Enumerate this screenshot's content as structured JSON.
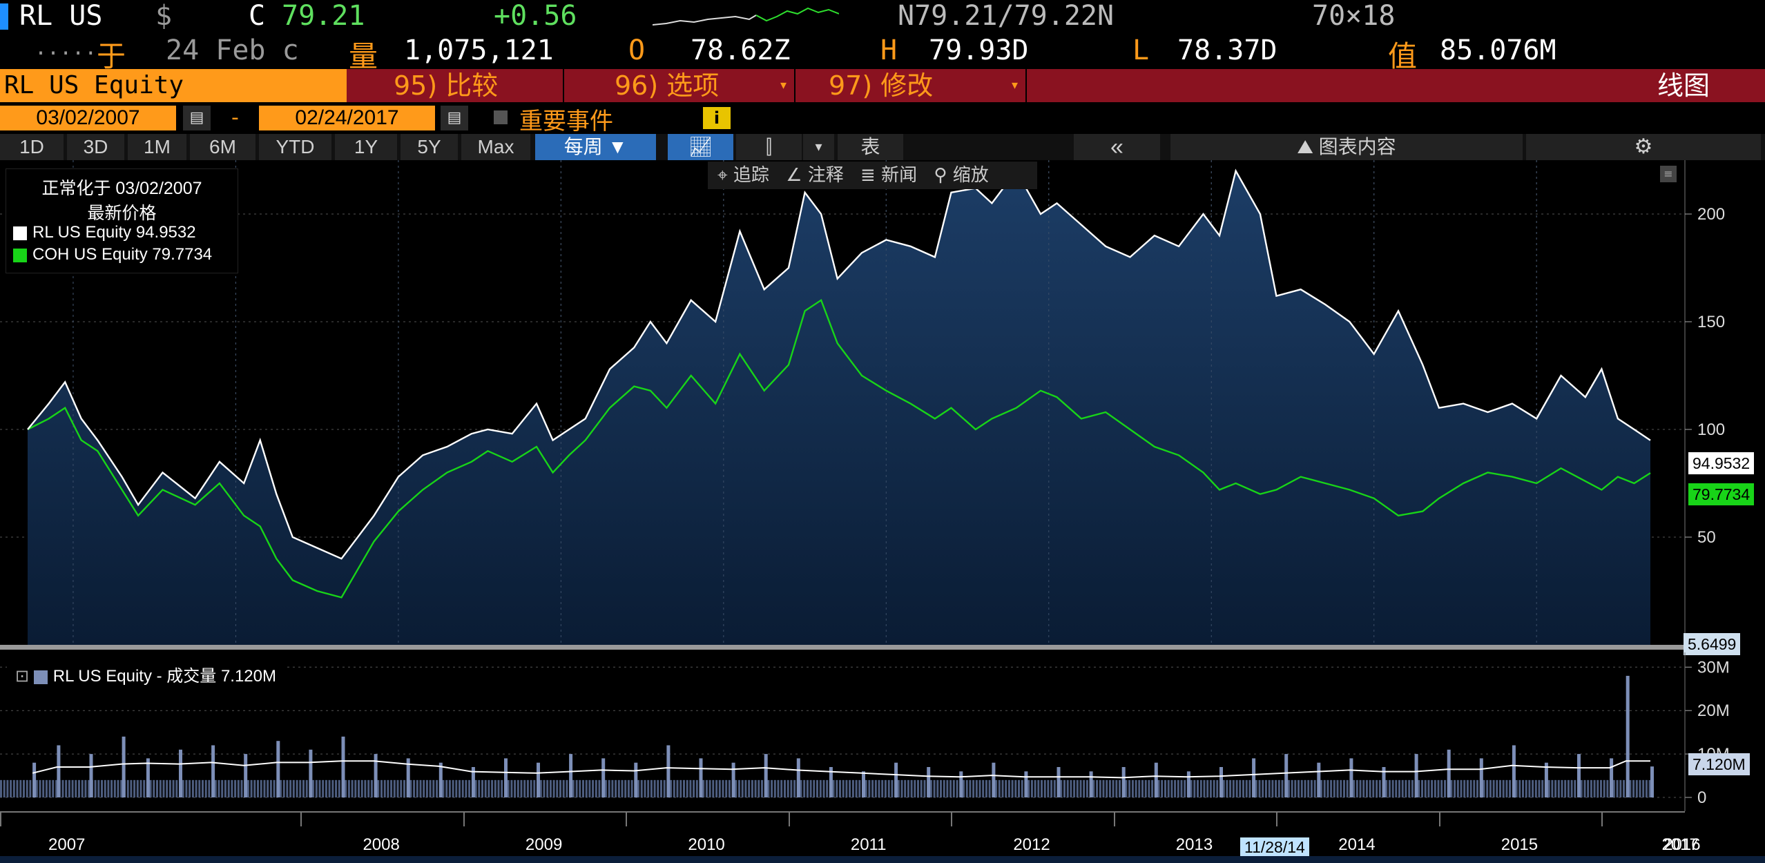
{
  "quote": {
    "ticker": "RL US",
    "currency_sym": "$",
    "close_flag": "C",
    "last": "79.21",
    "change": "+0.56",
    "bid_ask": "N79.21/79.22N",
    "size": "70×18",
    "date_prefix": "于",
    "date": "24 Feb c",
    "vol_label": "量",
    "volume": "1,075,121",
    "open_label": "O",
    "open": "78.62Z",
    "high_label": "H",
    "high": "79.93D",
    "low_label": "L",
    "low": "78.37D",
    "value_label": "值",
    "value": "85.076M",
    "dots": "....."
  },
  "toolbar": {
    "security": "RL US Equity",
    "compare": "95) 比较",
    "options": "96) 选项",
    "modify": "97) 修改",
    "chart_type": "线图",
    "start_date": "03/02/2007",
    "dash": "-",
    "end_date": "02/24/2017",
    "events": "重要事件",
    "info": "i"
  },
  "ranges": [
    "1D",
    "3D",
    "1M",
    "6M",
    "YTD",
    "1Y",
    "5Y",
    "Max"
  ],
  "period": "每周 ▼",
  "table_label": "表",
  "back_label": "«",
  "chart_content": "图表内容",
  "tools": [
    "追踪",
    "注释",
    "新闻",
    "缩放"
  ],
  "legend": {
    "title1": "正常化于 03/02/2007",
    "title2": "最新价格",
    "rl": "RL US Equity   94.9532",
    "coh": "COH US Equity  79.7734"
  },
  "vol_legend": "RL US Equity - 成交量 7.120M",
  "tags": {
    "rl_last": "94.9532",
    "coh_last": "79.7734",
    "low_mark": "5.6499",
    "vol_last": "7.120M",
    "cursor_date": "11/28/14"
  },
  "colors": {
    "rl": "#ffffff",
    "coh": "#18d418",
    "area": "#0e2a48",
    "vol": "#7d8fb8",
    "accent": "#ff9a1a",
    "bar": "#8a1220"
  },
  "chart_data": [
    {
      "type": "line",
      "title": "",
      "xlabel": "",
      "ylabel": "",
      "x_ticks": [
        "2007",
        "2008",
        "2009",
        "2010",
        "2011",
        "2012",
        "2013",
        "2014",
        "2015",
        "2016",
        "2017"
      ],
      "y_ticks": [
        "50",
        "100",
        "150",
        "200"
      ],
      "ylim": [
        0,
        225
      ],
      "legend": "top-left",
      "grid": true,
      "series": [
        {
          "name": "RL US Equity",
          "points": [
            [
              2007.17,
              100
            ],
            [
              2007.3,
              112
            ],
            [
              2007.4,
              122
            ],
            [
              2007.5,
              105
            ],
            [
              2007.6,
              95
            ],
            [
              2007.75,
              78
            ],
            [
              2007.85,
              65
            ],
            [
              2008.0,
              80
            ],
            [
              2008.2,
              68
            ],
            [
              2008.35,
              85
            ],
            [
              2008.5,
              75
            ],
            [
              2008.6,
              95
            ],
            [
              2008.7,
              70
            ],
            [
              2008.8,
              50
            ],
            [
              2008.95,
              45
            ],
            [
              2009.1,
              40
            ],
            [
              2009.3,
              60
            ],
            [
              2009.45,
              78
            ],
            [
              2009.6,
              88
            ],
            [
              2009.75,
              92
            ],
            [
              2009.9,
              98
            ],
            [
              2010.0,
              100
            ],
            [
              2010.15,
              98
            ],
            [
              2010.3,
              112
            ],
            [
              2010.4,
              95
            ],
            [
              2010.5,
              100
            ],
            [
              2010.6,
              105
            ],
            [
              2010.75,
              128
            ],
            [
              2010.9,
              138
            ],
            [
              2011.0,
              150
            ],
            [
              2011.1,
              140
            ],
            [
              2011.25,
              160
            ],
            [
              2011.4,
              150
            ],
            [
              2011.55,
              192
            ],
            [
              2011.7,
              165
            ],
            [
              2011.85,
              175
            ],
            [
              2011.95,
              210
            ],
            [
              2012.05,
              200
            ],
            [
              2012.15,
              170
            ],
            [
              2012.3,
              182
            ],
            [
              2012.45,
              188
            ],
            [
              2012.6,
              185
            ],
            [
              2012.75,
              180
            ],
            [
              2012.85,
              210
            ],
            [
              2013.0,
              212
            ],
            [
              2013.1,
              205
            ],
            [
              2013.25,
              220
            ],
            [
              2013.4,
              200
            ],
            [
              2013.5,
              205
            ],
            [
              2013.65,
              195
            ],
            [
              2013.8,
              185
            ],
            [
              2013.95,
              180
            ],
            [
              2014.1,
              190
            ],
            [
              2014.25,
              185
            ],
            [
              2014.4,
              200
            ],
            [
              2014.5,
              190
            ],
            [
              2014.6,
              220
            ],
            [
              2014.75,
              200
            ],
            [
              2014.85,
              162
            ],
            [
              2015.0,
              165
            ],
            [
              2015.15,
              158
            ],
            [
              2015.3,
              150
            ],
            [
              2015.45,
              135
            ],
            [
              2015.6,
              155
            ],
            [
              2015.75,
              130
            ],
            [
              2015.85,
              110
            ],
            [
              2016.0,
              112
            ],
            [
              2016.15,
              108
            ],
            [
              2016.3,
              112
            ],
            [
              2016.45,
              105
            ],
            [
              2016.6,
              125
            ],
            [
              2016.75,
              115
            ],
            [
              2016.85,
              128
            ],
            [
              2016.95,
              105
            ],
            [
              2017.05,
              100
            ],
            [
              2017.15,
              94.95
            ]
          ]
        },
        {
          "name": "COH US Equity",
          "points": [
            [
              2007.17,
              100
            ],
            [
              2007.3,
              105
            ],
            [
              2007.4,
              110
            ],
            [
              2007.5,
              95
            ],
            [
              2007.6,
              90
            ],
            [
              2007.75,
              72
            ],
            [
              2007.85,
              60
            ],
            [
              2008.0,
              72
            ],
            [
              2008.2,
              65
            ],
            [
              2008.35,
              75
            ],
            [
              2008.5,
              60
            ],
            [
              2008.6,
              55
            ],
            [
              2008.7,
              40
            ],
            [
              2008.8,
              30
            ],
            [
              2008.95,
              25
            ],
            [
              2009.1,
              22
            ],
            [
              2009.3,
              48
            ],
            [
              2009.45,
              62
            ],
            [
              2009.6,
              72
            ],
            [
              2009.75,
              80
            ],
            [
              2009.9,
              85
            ],
            [
              2010.0,
              90
            ],
            [
              2010.15,
              85
            ],
            [
              2010.3,
              92
            ],
            [
              2010.4,
              80
            ],
            [
              2010.5,
              88
            ],
            [
              2010.6,
              95
            ],
            [
              2010.75,
              110
            ],
            [
              2010.9,
              120
            ],
            [
              2011.0,
              118
            ],
            [
              2011.1,
              110
            ],
            [
              2011.25,
              125
            ],
            [
              2011.4,
              112
            ],
            [
              2011.55,
              135
            ],
            [
              2011.7,
              118
            ],
            [
              2011.85,
              130
            ],
            [
              2011.95,
              155
            ],
            [
              2012.05,
              160
            ],
            [
              2012.15,
              140
            ],
            [
              2012.3,
              125
            ],
            [
              2012.45,
              118
            ],
            [
              2012.6,
              112
            ],
            [
              2012.75,
              105
            ],
            [
              2012.85,
              110
            ],
            [
              2013.0,
              100
            ],
            [
              2013.1,
              105
            ],
            [
              2013.25,
              110
            ],
            [
              2013.4,
              118
            ],
            [
              2013.5,
              115
            ],
            [
              2013.65,
              105
            ],
            [
              2013.8,
              108
            ],
            [
              2013.95,
              100
            ],
            [
              2014.1,
              92
            ],
            [
              2014.25,
              88
            ],
            [
              2014.4,
              80
            ],
            [
              2014.5,
              72
            ],
            [
              2014.6,
              75
            ],
            [
              2014.75,
              70
            ],
            [
              2014.85,
              72
            ],
            [
              2015.0,
              78
            ],
            [
              2015.15,
              75
            ],
            [
              2015.3,
              72
            ],
            [
              2015.45,
              68
            ],
            [
              2015.6,
              60
            ],
            [
              2015.75,
              62
            ],
            [
              2015.85,
              68
            ],
            [
              2016.0,
              75
            ],
            [
              2016.15,
              80
            ],
            [
              2016.3,
              78
            ],
            [
              2016.45,
              75
            ],
            [
              2016.6,
              82
            ],
            [
              2016.75,
              76
            ],
            [
              2016.85,
              72
            ],
            [
              2016.95,
              78
            ],
            [
              2017.05,
              75
            ],
            [
              2017.15,
              79.77
            ]
          ]
        }
      ]
    },
    {
      "type": "bar",
      "title": "",
      "y_ticks": [
        "0",
        "10M",
        "20M",
        "30M"
      ],
      "ylim": [
        0,
        31
      ],
      "series": [
        {
          "name": "RL US Equity - 成交量",
          "x": [
            2007.2,
            2007.35,
            2007.55,
            2007.75,
            2007.9,
            2008.1,
            2008.3,
            2008.5,
            2008.7,
            2008.9,
            2009.1,
            2009.3,
            2009.5,
            2009.7,
            2009.9,
            2010.1,
            2010.3,
            2010.5,
            2010.7,
            2010.9,
            2011.1,
            2011.3,
            2011.5,
            2011.7,
            2011.9,
            2012.1,
            2012.3,
            2012.5,
            2012.7,
            2012.9,
            2013.1,
            2013.3,
            2013.5,
            2013.7,
            2013.9,
            2014.1,
            2014.3,
            2014.5,
            2014.7,
            2014.9,
            2015.1,
            2015.3,
            2015.5,
            2015.7,
            2015.9,
            2016.1,
            2016.3,
            2016.5,
            2016.7,
            2016.9,
            2017.0,
            2017.15
          ],
          "values": [
            8,
            12,
            10,
            14,
            9,
            11,
            12,
            10,
            13,
            11,
            14,
            10,
            9,
            8,
            7,
            9,
            8,
            10,
            9,
            8,
            12,
            9,
            8,
            10,
            9,
            7,
            6,
            8,
            7,
            6,
            8,
            6,
            7,
            6,
            7,
            8,
            6,
            7,
            9,
            10,
            8,
            9,
            7,
            10,
            11,
            9,
            12,
            8,
            10,
            9,
            28,
            7.12
          ]
        }
      ]
    }
  ]
}
